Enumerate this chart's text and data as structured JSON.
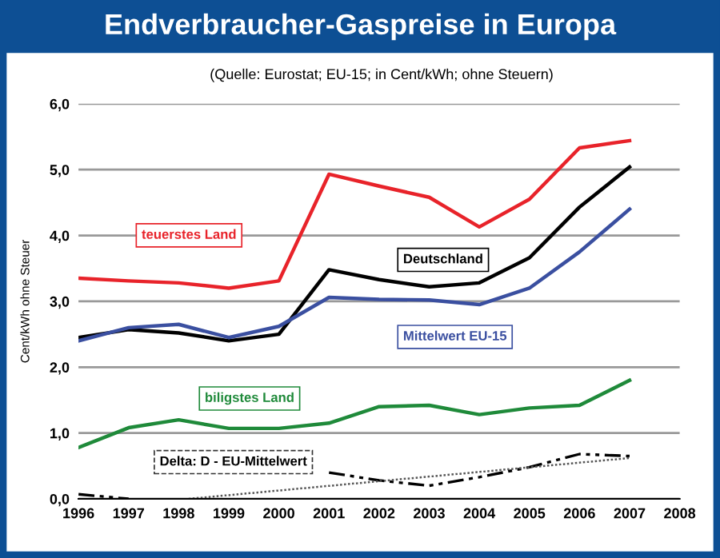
{
  "chart_data": {
    "type": "line",
    "title": "Endverbraucher-Gaspreise in Europa",
    "subtitle": "(Quelle: Eurostat; EU-15; in Cent/kWh; ohne Steuern)",
    "ylabel": "Cent/kWh ohne Steuer",
    "x": [
      1996,
      1997,
      1998,
      1999,
      2000,
      2001,
      2002,
      2003,
      2004,
      2005,
      2006,
      2007
    ],
    "xlim": [
      1996,
      2008
    ],
    "xticks": [
      1996,
      1997,
      1998,
      1999,
      2000,
      2001,
      2002,
      2003,
      2004,
      2005,
      2006,
      2007,
      2008
    ],
    "ylim": [
      0,
      6
    ],
    "yticks": [
      {
        "value": 0,
        "label": "0,0"
      },
      {
        "value": 1,
        "label": "1,0"
      },
      {
        "value": 2,
        "label": "2,0"
      },
      {
        "value": 3,
        "label": "3,0"
      },
      {
        "value": 4,
        "label": "4,0"
      },
      {
        "value": 5,
        "label": "5,0"
      },
      {
        "value": 6,
        "label": "6,0"
      }
    ],
    "grid": "y",
    "marker": "none",
    "series": [
      {
        "name": "teuerstes Land",
        "color": "#e8232a",
        "line_style": "solid",
        "values": [
          3.35,
          3.31,
          3.28,
          3.2,
          3.31,
          4.93,
          4.75,
          4.58,
          4.13,
          4.55,
          5.33,
          5.44
        ]
      },
      {
        "name": "Deutschland",
        "color": "#000000",
        "line_style": "solid",
        "values": [
          2.45,
          2.57,
          2.52,
          2.4,
          2.5,
          3.48,
          3.33,
          3.22,
          3.28,
          3.66,
          4.43,
          5.04
        ]
      },
      {
        "name": "Mittelwert EU-15",
        "color": "#3a4fa0",
        "line_style": "solid",
        "values": [
          2.4,
          2.6,
          2.65,
          2.45,
          2.62,
          3.06,
          3.03,
          3.02,
          2.95,
          3.2,
          3.75,
          4.4
        ]
      },
      {
        "name": "biligstes Land",
        "color": "#1f8a3a",
        "line_style": "solid",
        "values": [
          0.78,
          1.08,
          1.2,
          1.07,
          1.07,
          1.15,
          1.4,
          1.42,
          1.28,
          1.38,
          1.42,
          1.8
        ]
      },
      {
        "name": "Delta: D - EU-Mittelwert",
        "color": "#000000",
        "line_style": "dashed",
        "values": [
          0.07,
          0.0,
          null,
          null,
          null,
          0.4,
          0.28,
          0.2,
          0.33,
          0.48,
          0.68,
          0.65
        ]
      },
      {
        "color": "#555555",
        "line_style": "dotted",
        "x": [
          1998.2,
          2007
        ],
        "values": [
          0.0,
          0.62
        ]
      }
    ]
  }
}
